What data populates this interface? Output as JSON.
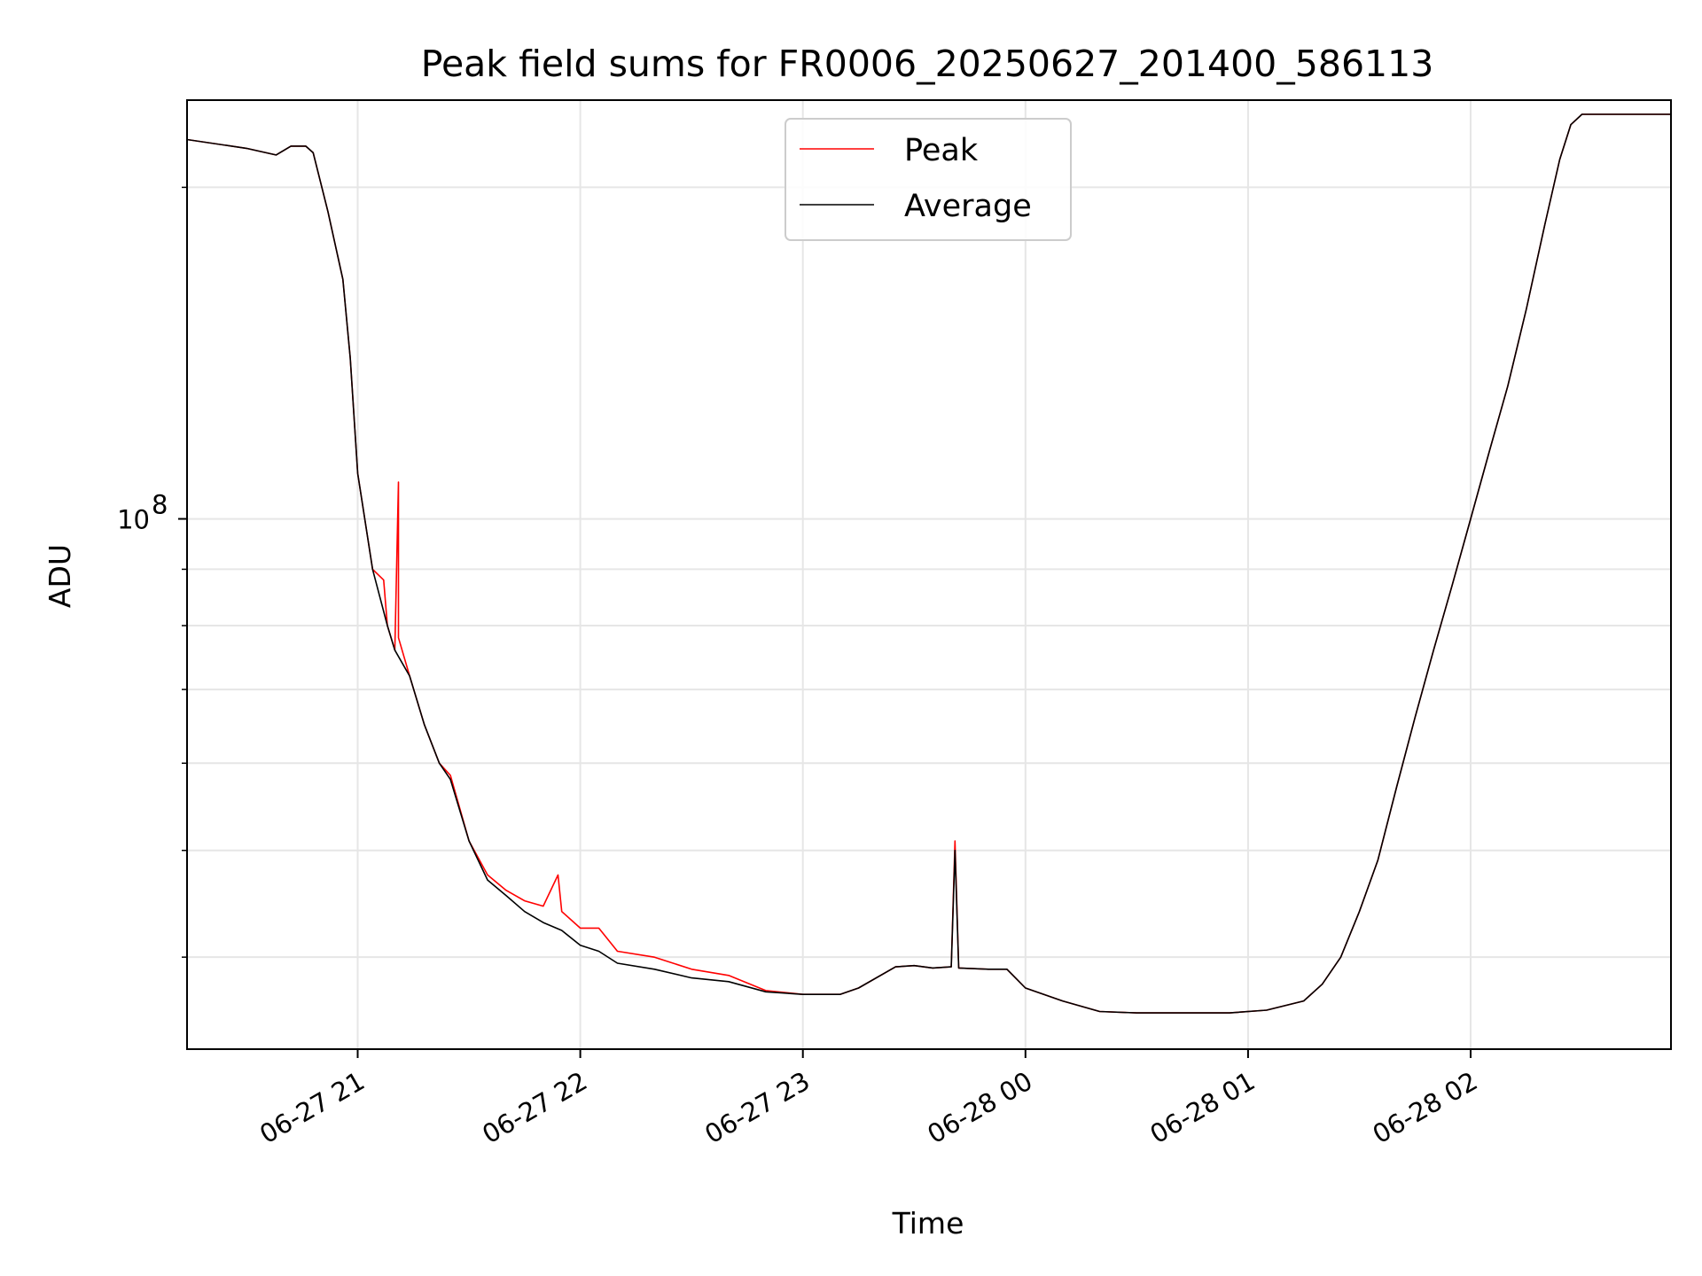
{
  "chart_data": {
    "type": "line",
    "title": "Peak field sums for FR0006_20250627_201400_586113",
    "xlabel": "Time",
    "ylabel": "ADU",
    "x_scale": "time",
    "y_scale": "log",
    "xlim": [
      "2025-06-27 20:14",
      "2025-06-28 02:54"
    ],
    "ylim": [
      33000000,
      240000000
    ],
    "x_ticks": [
      "2025-06-27 21:00",
      "2025-06-27 22:00",
      "2025-06-27 23:00",
      "2025-06-28 00:00",
      "2025-06-28 01:00",
      "2025-06-28 02:00"
    ],
    "x_tick_labels": [
      "06-27 21",
      "06-27 22",
      "06-27 23",
      "06-28 00",
      "06-28 01",
      "06-28 02"
    ],
    "y_ticks": [
      100000000
    ],
    "y_tick_labels": [
      {
        "base": "10",
        "exp": "8"
      }
    ],
    "y_minor_ticks": [
      40000000,
      50000000,
      60000000,
      70000000,
      80000000,
      90000000,
      200000000
    ],
    "grid": true,
    "legend_position": "upper-center",
    "series": [
      {
        "name": "Peak",
        "color": "#ff0000",
        "points": [
          [
            "2025-06-27 20:14",
            221000000
          ],
          [
            "2025-06-27 20:30",
            217000000
          ],
          [
            "2025-06-27 20:38",
            214000000
          ],
          [
            "2025-06-27 20:42",
            218000000
          ],
          [
            "2025-06-27 20:46",
            218000000
          ],
          [
            "2025-06-27 20:48",
            215000000
          ],
          [
            "2025-06-27 20:52",
            190000000
          ],
          [
            "2025-06-27 20:56",
            165000000
          ],
          [
            "2025-06-27 20:58",
            140000000
          ],
          [
            "2025-06-27 21:00",
            110000000
          ],
          [
            "2025-06-27 21:04",
            90000000
          ],
          [
            "2025-06-27 21:07",
            88000000
          ],
          [
            "2025-06-27 21:08",
            80000000
          ],
          [
            "2025-06-27 21:10",
            76000000
          ],
          [
            "2025-06-27 21:11",
            108000000
          ],
          [
            "2025-06-27 21:11",
            78000000
          ],
          [
            "2025-06-27 21:14",
            72000000
          ],
          [
            "2025-06-27 21:18",
            65000000
          ],
          [
            "2025-06-27 21:22",
            60000000
          ],
          [
            "2025-06-27 21:25",
            58500000
          ],
          [
            "2025-06-27 21:30",
            51000000
          ],
          [
            "2025-06-27 21:35",
            47500000
          ],
          [
            "2025-06-27 21:40",
            46000000
          ],
          [
            "2025-06-27 21:45",
            45000000
          ],
          [
            "2025-06-27 21:50",
            44500000
          ],
          [
            "2025-06-27 21:54",
            47500000
          ],
          [
            "2025-06-27 21:55",
            44000000
          ],
          [
            "2025-06-27 22:00",
            42500000
          ],
          [
            "2025-06-27 22:05",
            42500000
          ],
          [
            "2025-06-27 22:10",
            40500000
          ],
          [
            "2025-06-27 22:20",
            40000000
          ],
          [
            "2025-06-27 22:30",
            39000000
          ],
          [
            "2025-06-27 22:40",
            38500000
          ],
          [
            "2025-06-27 22:50",
            37300000
          ],
          [
            "2025-06-27 23:00",
            37000000
          ],
          [
            "2025-06-27 23:10",
            37000000
          ],
          [
            "2025-06-27 23:15",
            37500000
          ],
          [
            "2025-06-27 23:25",
            39200000
          ],
          [
            "2025-06-27 23:30",
            39300000
          ],
          [
            "2025-06-27 23:35",
            39100000
          ],
          [
            "2025-06-27 23:40",
            39200000
          ],
          [
            "2025-06-27 23:41",
            51000000
          ],
          [
            "2025-06-27 23:42",
            39100000
          ],
          [
            "2025-06-27 23:50",
            39000000
          ],
          [
            "2025-06-27 23:55",
            39000000
          ],
          [
            "2025-06-28 00:00",
            37500000
          ],
          [
            "2025-06-28 00:10",
            36500000
          ],
          [
            "2025-06-28 00:20",
            35700000
          ],
          [
            "2025-06-28 00:30",
            35600000
          ],
          [
            "2025-06-28 00:45",
            35600000
          ],
          [
            "2025-06-28 00:55",
            35600000
          ],
          [
            "2025-06-28 01:05",
            35800000
          ],
          [
            "2025-06-28 01:15",
            36500000
          ],
          [
            "2025-06-28 01:20",
            37800000
          ],
          [
            "2025-06-28 01:25",
            40000000
          ],
          [
            "2025-06-28 01:30",
            44000000
          ],
          [
            "2025-06-28 01:35",
            49000000
          ],
          [
            "2025-06-28 01:40",
            57000000
          ],
          [
            "2025-06-28 01:45",
            66000000
          ],
          [
            "2025-06-28 01:50",
            76000000
          ],
          [
            "2025-06-28 01:55",
            87000000
          ],
          [
            "2025-06-28 02:00",
            100000000
          ],
          [
            "2025-06-28 02:05",
            115000000
          ],
          [
            "2025-06-28 02:10",
            132000000
          ],
          [
            "2025-06-28 02:15",
            155000000
          ],
          [
            "2025-06-28 02:20",
            185000000
          ],
          [
            "2025-06-28 02:24",
            212000000
          ],
          [
            "2025-06-28 02:27",
            228000000
          ],
          [
            "2025-06-28 02:30",
            233000000
          ],
          [
            "2025-06-28 02:54",
            233000000
          ]
        ]
      },
      {
        "name": "Average",
        "color": "#000000",
        "points": [
          [
            "2025-06-27 20:14",
            221000000
          ],
          [
            "2025-06-27 20:30",
            217000000
          ],
          [
            "2025-06-27 20:38",
            214000000
          ],
          [
            "2025-06-27 20:42",
            218000000
          ],
          [
            "2025-06-27 20:46",
            218000000
          ],
          [
            "2025-06-27 20:48",
            215000000
          ],
          [
            "2025-06-27 20:52",
            190000000
          ],
          [
            "2025-06-27 20:56",
            165000000
          ],
          [
            "2025-06-27 20:58",
            140000000
          ],
          [
            "2025-06-27 21:00",
            110000000
          ],
          [
            "2025-06-27 21:04",
            90000000
          ],
          [
            "2025-06-27 21:08",
            80000000
          ],
          [
            "2025-06-27 21:10",
            76000000
          ],
          [
            "2025-06-27 21:14",
            72000000
          ],
          [
            "2025-06-27 21:18",
            65000000
          ],
          [
            "2025-06-27 21:22",
            60000000
          ],
          [
            "2025-06-27 21:25",
            58000000
          ],
          [
            "2025-06-27 21:30",
            51000000
          ],
          [
            "2025-06-27 21:35",
            47000000
          ],
          [
            "2025-06-27 21:40",
            45500000
          ],
          [
            "2025-06-27 21:45",
            44000000
          ],
          [
            "2025-06-27 21:50",
            43000000
          ],
          [
            "2025-06-27 21:55",
            42300000
          ],
          [
            "2025-06-27 22:00",
            41000000
          ],
          [
            "2025-06-27 22:05",
            40500000
          ],
          [
            "2025-06-27 22:10",
            39500000
          ],
          [
            "2025-06-27 22:20",
            39000000
          ],
          [
            "2025-06-27 22:30",
            38300000
          ],
          [
            "2025-06-27 22:40",
            38000000
          ],
          [
            "2025-06-27 22:50",
            37200000
          ],
          [
            "2025-06-27 23:00",
            37000000
          ],
          [
            "2025-06-27 23:10",
            37000000
          ],
          [
            "2025-06-27 23:15",
            37500000
          ],
          [
            "2025-06-27 23:25",
            39200000
          ],
          [
            "2025-06-27 23:30",
            39300000
          ],
          [
            "2025-06-27 23:35",
            39100000
          ],
          [
            "2025-06-27 23:40",
            39200000
          ],
          [
            "2025-06-27 23:41",
            50000000
          ],
          [
            "2025-06-27 23:42",
            39100000
          ],
          [
            "2025-06-27 23:50",
            39000000
          ],
          [
            "2025-06-27 23:55",
            39000000
          ],
          [
            "2025-06-28 00:00",
            37500000
          ],
          [
            "2025-06-28 00:10",
            36500000
          ],
          [
            "2025-06-28 00:20",
            35700000
          ],
          [
            "2025-06-28 00:30",
            35600000
          ],
          [
            "2025-06-28 00:45",
            35600000
          ],
          [
            "2025-06-28 00:55",
            35600000
          ],
          [
            "2025-06-28 01:05",
            35800000
          ],
          [
            "2025-06-28 01:15",
            36500000
          ],
          [
            "2025-06-28 01:20",
            37800000
          ],
          [
            "2025-06-28 01:25",
            40000000
          ],
          [
            "2025-06-28 01:30",
            44000000
          ],
          [
            "2025-06-28 01:35",
            49000000
          ],
          [
            "2025-06-28 01:40",
            57000000
          ],
          [
            "2025-06-28 01:45",
            66000000
          ],
          [
            "2025-06-28 01:50",
            76000000
          ],
          [
            "2025-06-28 01:55",
            87000000
          ],
          [
            "2025-06-28 02:00",
            100000000
          ],
          [
            "2025-06-28 02:05",
            115000000
          ],
          [
            "2025-06-28 02:10",
            132000000
          ],
          [
            "2025-06-28 02:15",
            155000000
          ],
          [
            "2025-06-28 02:20",
            185000000
          ],
          [
            "2025-06-28 02:24",
            212000000
          ],
          [
            "2025-06-28 02:27",
            228000000
          ],
          [
            "2025-06-28 02:30",
            233000000
          ],
          [
            "2025-06-28 02:54",
            233000000
          ]
        ]
      }
    ]
  }
}
